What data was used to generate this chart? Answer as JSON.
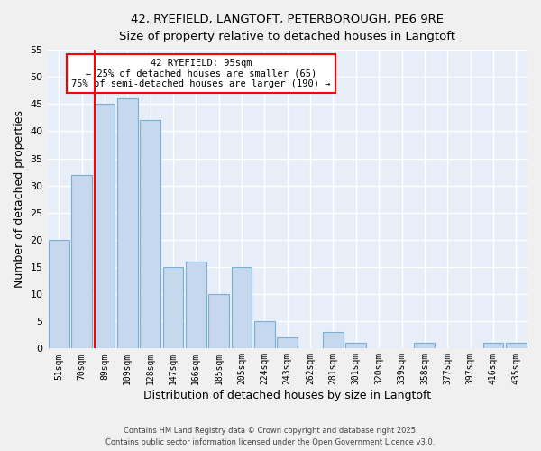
{
  "title": "42, RYEFIELD, LANGTOFT, PETERBOROUGH, PE6 9RE",
  "subtitle": "Size of property relative to detached houses in Langtoft",
  "xlabel": "Distribution of detached houses by size in Langtoft",
  "ylabel": "Number of detached properties",
  "bar_color": "#c5d8ed",
  "bar_edge_color": "#7aafd4",
  "background_color": "#e8eef8",
  "grid_color": "#ffffff",
  "fig_background": "#f0f0f0",
  "categories": [
    "51sqm",
    "70sqm",
    "89sqm",
    "109sqm",
    "128sqm",
    "147sqm",
    "166sqm",
    "185sqm",
    "205sqm",
    "224sqm",
    "243sqm",
    "262sqm",
    "281sqm",
    "301sqm",
    "320sqm",
    "339sqm",
    "358sqm",
    "377sqm",
    "397sqm",
    "416sqm",
    "435sqm"
  ],
  "values": [
    20,
    32,
    45,
    46,
    42,
    15,
    16,
    10,
    15,
    5,
    2,
    0,
    3,
    1,
    0,
    0,
    1,
    0,
    0,
    1,
    1
  ],
  "ylim": [
    0,
    55
  ],
  "yticks": [
    0,
    5,
    10,
    15,
    20,
    25,
    30,
    35,
    40,
    45,
    50,
    55
  ],
  "red_line_index": 2,
  "annotation_title": "42 RYEFIELD: 95sqm",
  "annotation_line1": "← 25% of detached houses are smaller (65)",
  "annotation_line2": "75% of semi-detached houses are larger (190) →",
  "footer_line1": "Contains HM Land Registry data © Crown copyright and database right 2025.",
  "footer_line2": "Contains public sector information licensed under the Open Government Licence v3.0."
}
